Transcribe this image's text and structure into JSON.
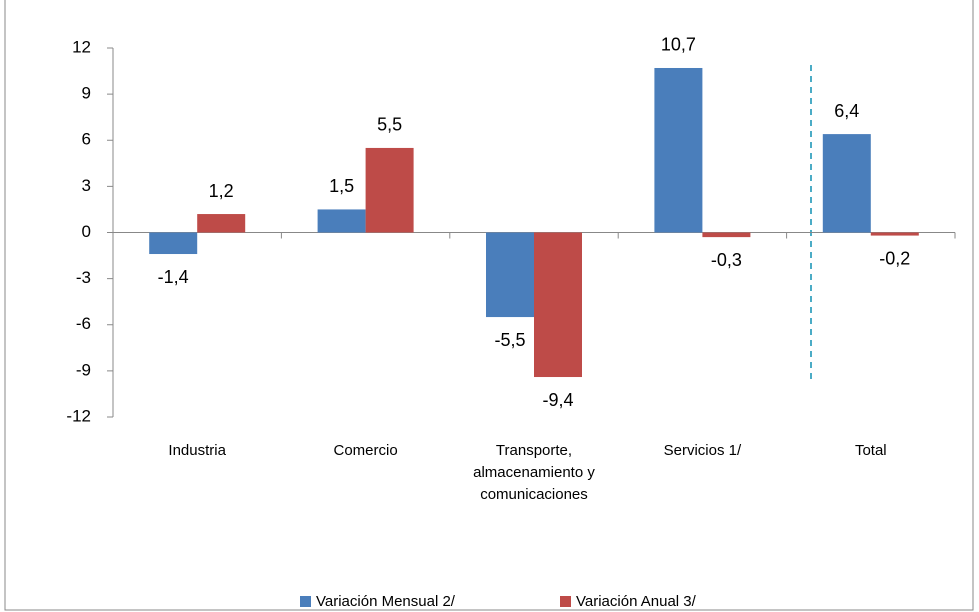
{
  "chart_data": {
    "type": "bar",
    "categories": [
      "Industria",
      "Comercio",
      "Transporte,\nalmacenamiento y\ncomunicaciones",
      "Servicios 1/",
      "Total"
    ],
    "series": [
      {
        "name": "Variación Mensual 2/",
        "color": "#4a7ebb",
        "values": [
          -1.4,
          1.5,
          -5.5,
          10.7,
          6.4
        ],
        "value_labels": [
          "-1,4",
          "1,5",
          "-5,5",
          "10,7",
          "6,4"
        ]
      },
      {
        "name": "Variación Anual 3/",
        "color": "#be4b48",
        "values": [
          1.2,
          5.5,
          -9.4,
          -0.3,
          -0.2
        ],
        "value_labels": [
          "1,2",
          "5,5",
          "-9,4",
          "-0,3",
          "-0,2"
        ]
      }
    ],
    "ylim": [
      -12,
      12
    ],
    "yticks": [
      -12,
      -9,
      -6,
      -3,
      0,
      3,
      6,
      9,
      12
    ],
    "legend": "bottom"
  }
}
